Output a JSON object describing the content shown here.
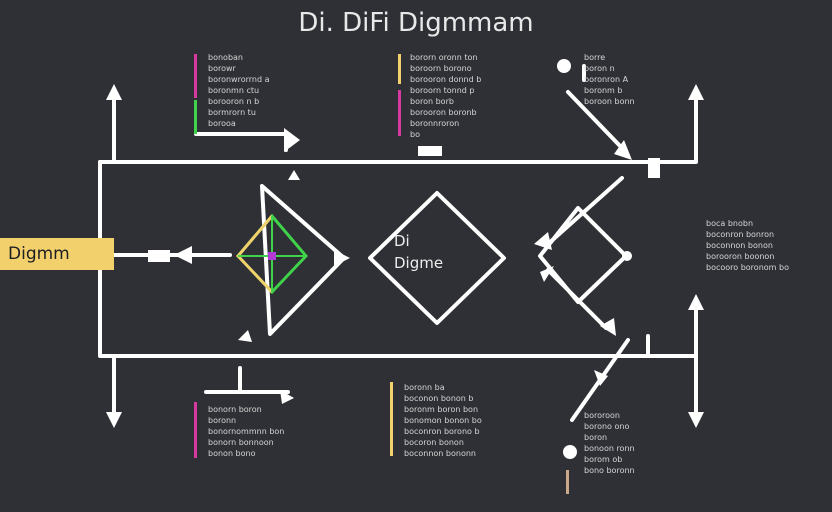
{
  "title": "Di. DiFi Digmmam",
  "callout": {
    "label": "Digmm",
    "color": "#f2d06b"
  },
  "center": {
    "line1": "Di",
    "line2": "Digme"
  },
  "colors": {
    "background": "#2e3035",
    "line": "#ffffff",
    "pink": "#d63aa0",
    "yellow": "#f2d06b",
    "green": "#3fd24a",
    "tan": "#c9a98a"
  },
  "notes": {
    "top_left": [
      "bonoban",
      "borowr",
      "boronwrorrnd a",
      "boronmn ctu",
      "borooron n b",
      "bormrorn tu",
      "borooa"
    ],
    "top_mid": [
      "bororn oronn ton",
      "boroorn borono",
      "borooron donnd b",
      "boroorn tonnd p",
      "boron borb",
      "borooron boronb",
      "boronnroron",
      "bo"
    ],
    "top_right": [
      "borre",
      "boron n",
      "boronron A",
      "boronm b",
      "boroon bonn"
    ],
    "right": [
      "boca bnobn",
      "boconron bonron",
      "boconnon bonon",
      "borooron boonon",
      "bocooro boronom bo"
    ],
    "bottom_left": [
      "bonorn boron",
      "boronn",
      "bonornommnn bon",
      "bonorn bonnoon",
      "bonon bono"
    ],
    "bottom_mid": [
      "boronn ba",
      "boconon bonon b",
      "boronm boron bon",
      "bonomon bonon bo",
      "boconron borono b",
      "bocoron bonon",
      "boconnon bononn"
    ],
    "bottom_right": [
      "bororoon",
      "borono ono",
      "boron",
      "bonoon ronn",
      "borom ob",
      "bono boronn"
    ]
  }
}
